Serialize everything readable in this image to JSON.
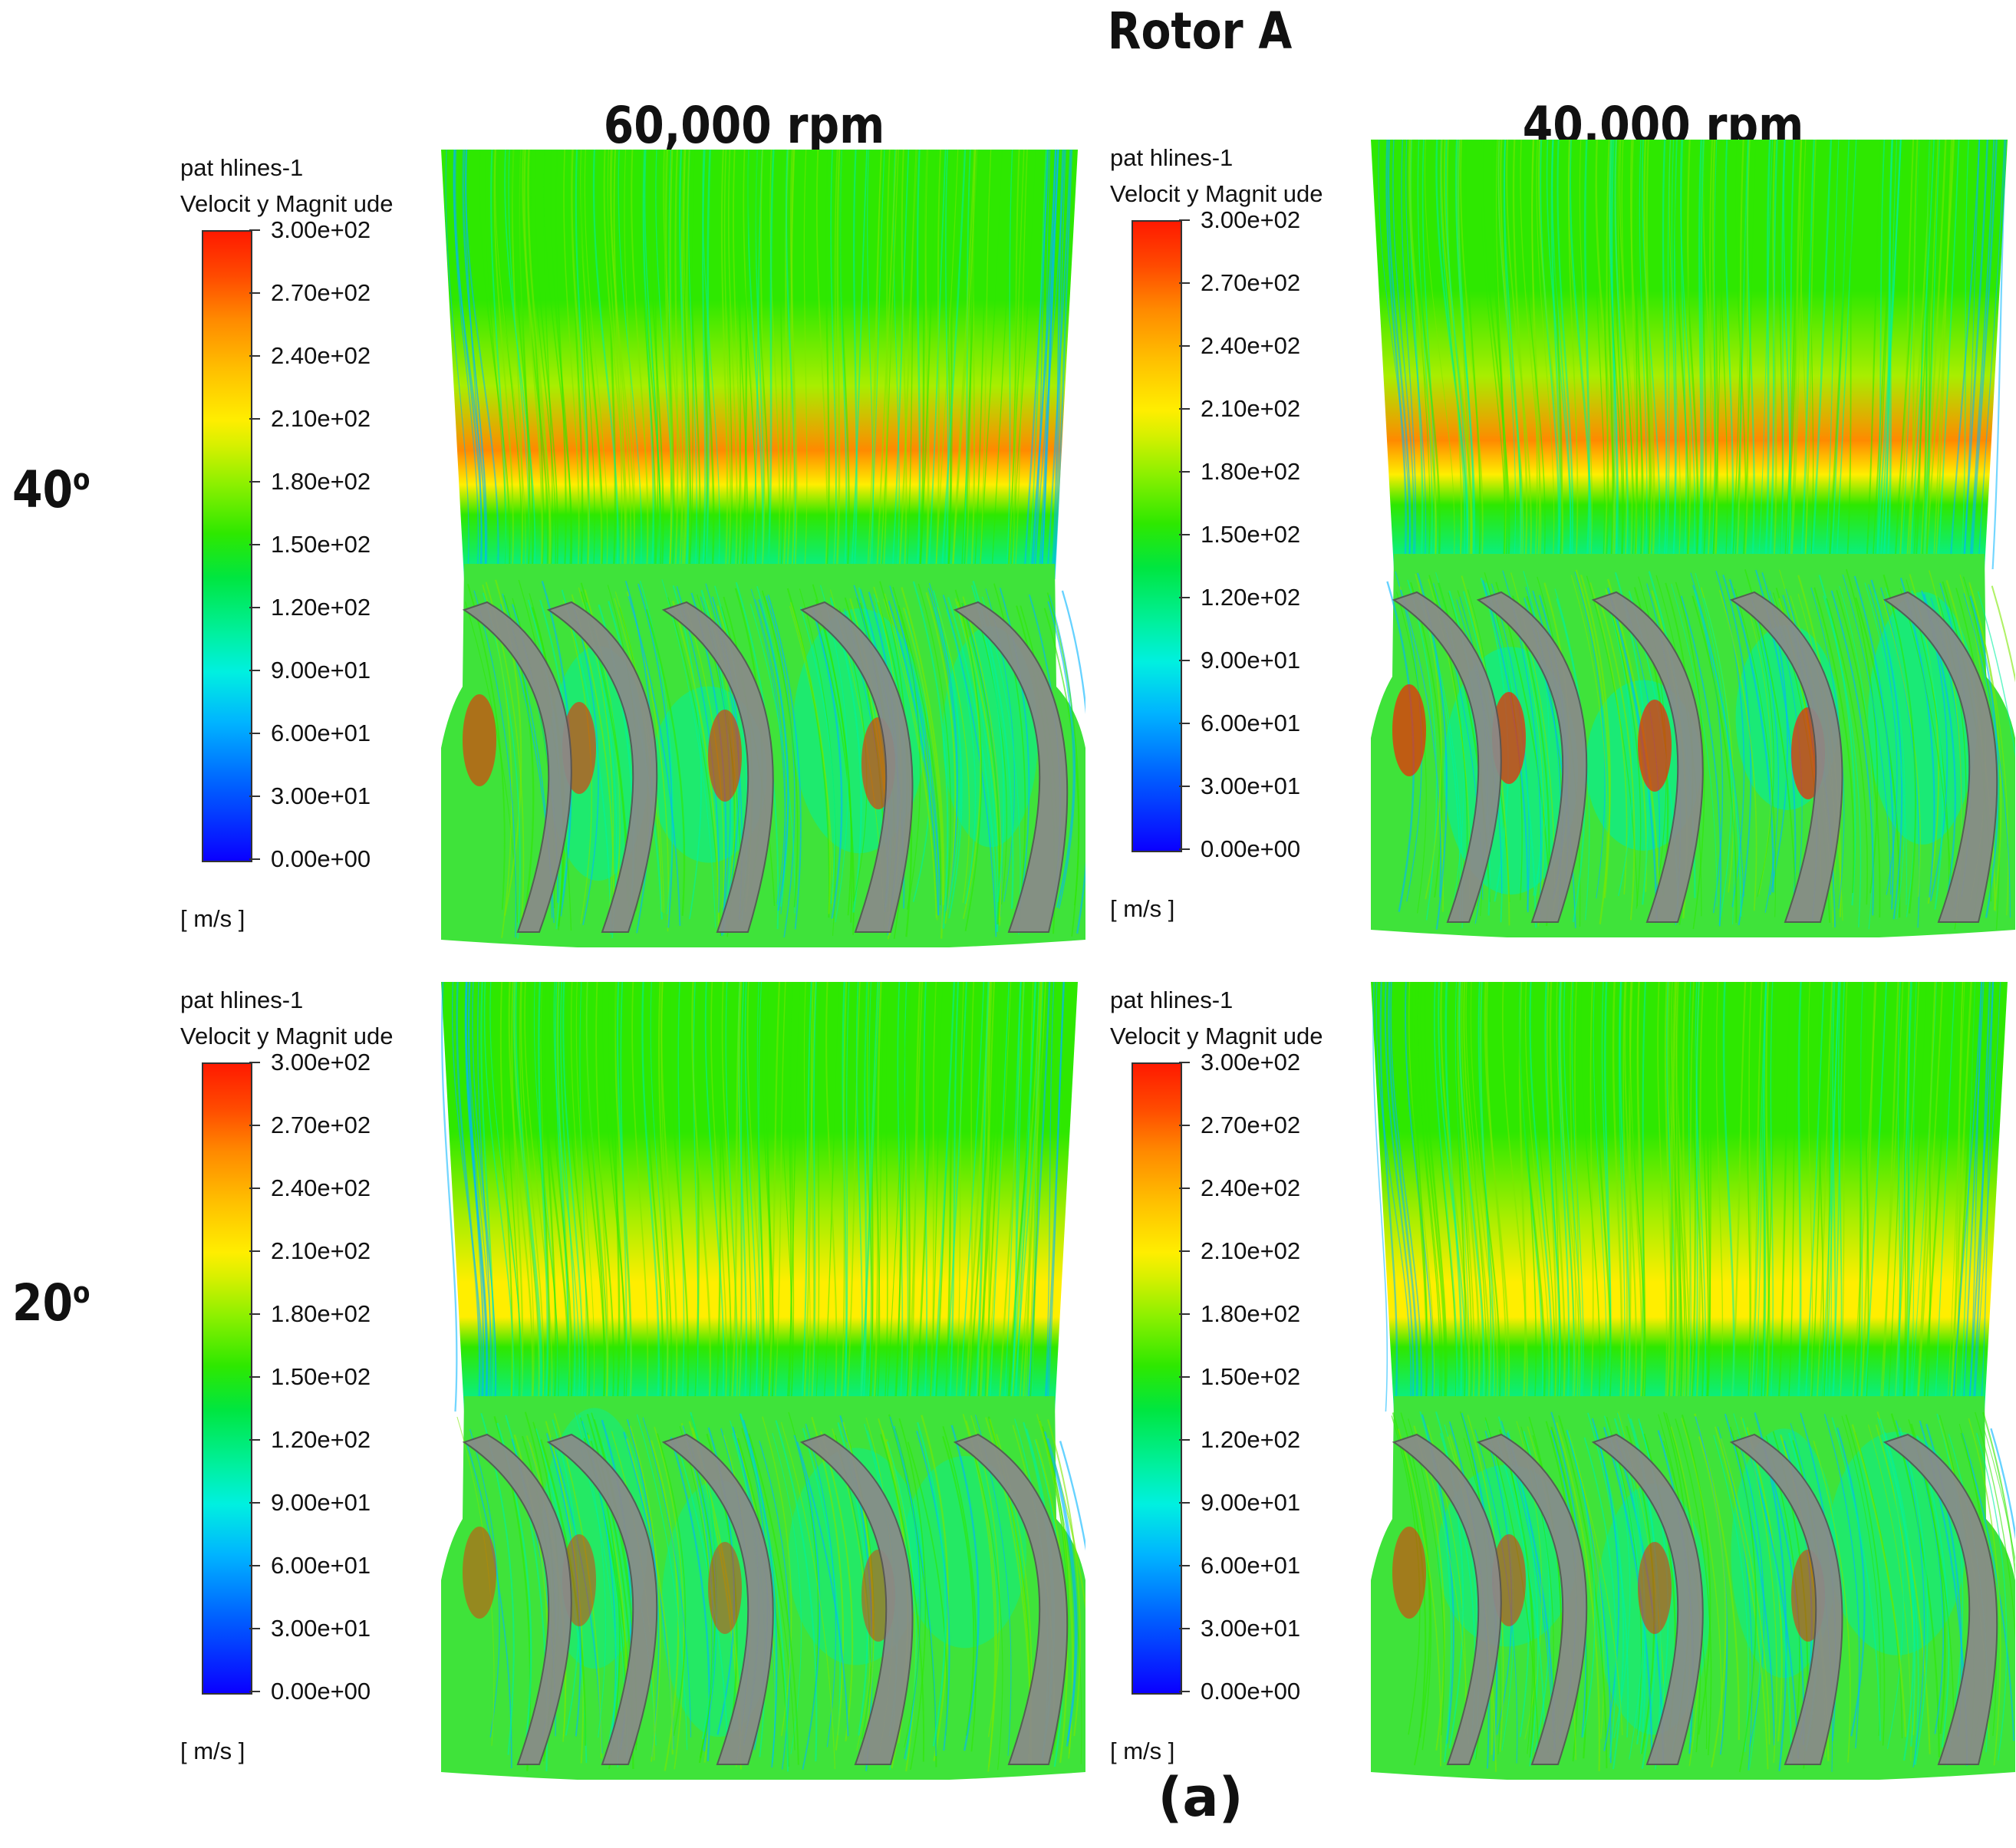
{
  "figure": {
    "title": "Rotor A",
    "caption": "(a)"
  },
  "columns": [
    {
      "label": "60,000 rpm"
    },
    {
      "label": "40,000 rpm"
    }
  ],
  "rows": [
    {
      "angle": "40",
      "unit_mark": "o"
    },
    {
      "angle": "20",
      "unit_mark": "o"
    }
  ],
  "legend": {
    "line1": "pat hlines-1",
    "line2": "Velocit y Magnit ude",
    "unit": "[ m/s ]",
    "ticks": [
      "3.00e+02",
      "2.70e+02",
      "2.40e+02",
      "2.10e+02",
      "1.80e+02",
      "1.50e+02",
      "1.20e+02",
      "9.00e+01",
      "6.00e+01",
      "3.00e+01",
      "0.00e+00"
    ]
  },
  "colors": {
    "colormap": [
      "#0a00ff",
      "#00b4ff",
      "#00f0a0",
      "#2ee800",
      "#ffee00",
      "#ff8a00",
      "#ff1a00"
    ],
    "blade": "#8a8a8a"
  }
}
